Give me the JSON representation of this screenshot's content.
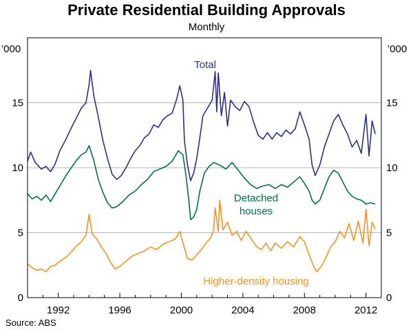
{
  "chart_data": {
    "type": "line",
    "title": "Private Residential Building Approvals",
    "subtitle": "Monthly",
    "source": "Source: ABS",
    "unit_left": "’000",
    "unit_right": "’000",
    "xlim": [
      1990.0,
      2013.0
    ],
    "ylim": [
      0,
      20
    ],
    "xticks": [
      1992,
      1996,
      2000,
      2004,
      2008,
      2012
    ],
    "yticks": [
      0,
      5,
      10,
      15
    ],
    "gridlines": "horizontal",
    "series": [
      {
        "name": "Total",
        "label": "Total",
        "color": "#2b2f8f",
        "points": [
          [
            1990.0,
            10.5
          ],
          [
            1990.2,
            11.2
          ],
          [
            1990.5,
            10.4
          ],
          [
            1990.9,
            9.9
          ],
          [
            1991.2,
            10.1
          ],
          [
            1991.5,
            9.7
          ],
          [
            1991.8,
            10.3
          ],
          [
            1992.1,
            11.3
          ],
          [
            1992.5,
            12.2
          ],
          [
            1992.9,
            13.2
          ],
          [
            1993.2,
            13.9
          ],
          [
            1993.5,
            14.6
          ],
          [
            1993.8,
            15.0
          ],
          [
            1994.0,
            16.4
          ],
          [
            1994.1,
            17.5
          ],
          [
            1994.3,
            15.6
          ],
          [
            1994.6,
            13.9
          ],
          [
            1994.9,
            12.1
          ],
          [
            1995.2,
            10.7
          ],
          [
            1995.5,
            9.5
          ],
          [
            1995.8,
            9.1
          ],
          [
            1996.1,
            9.4
          ],
          [
            1996.4,
            10.0
          ],
          [
            1996.7,
            10.7
          ],
          [
            1997.0,
            11.3
          ],
          [
            1997.3,
            11.7
          ],
          [
            1997.6,
            12.3
          ],
          [
            1997.9,
            12.6
          ],
          [
            1998.2,
            13.3
          ],
          [
            1998.5,
            13.1
          ],
          [
            1998.8,
            13.7
          ],
          [
            1999.1,
            14.0
          ],
          [
            1999.4,
            14.2
          ],
          [
            1999.7,
            15.3
          ],
          [
            1999.9,
            16.3
          ],
          [
            2000.1,
            15.2
          ],
          [
            2000.2,
            12.1
          ],
          [
            2000.4,
            10.2
          ],
          [
            2000.6,
            9.0
          ],
          [
            2000.8,
            9.6
          ],
          [
            2001.0,
            10.7
          ],
          [
            2001.2,
            12.3
          ],
          [
            2001.4,
            14.0
          ],
          [
            2001.7,
            14.6
          ],
          [
            2002.0,
            15.2
          ],
          [
            2002.2,
            17.4
          ],
          [
            2002.3,
            14.3
          ],
          [
            2002.4,
            17.3
          ],
          [
            2002.6,
            14.0
          ],
          [
            2002.8,
            15.8
          ],
          [
            2003.0,
            13.2
          ],
          [
            2003.2,
            15.2
          ],
          [
            2003.5,
            14.7
          ],
          [
            2003.8,
            14.4
          ],
          [
            2004.1,
            15.1
          ],
          [
            2004.4,
            14.7
          ],
          [
            2004.7,
            13.5
          ],
          [
            2005.0,
            12.5
          ],
          [
            2005.3,
            12.2
          ],
          [
            2005.6,
            12.7
          ],
          [
            2005.9,
            12.2
          ],
          [
            2006.2,
            12.7
          ],
          [
            2006.5,
            12.4
          ],
          [
            2006.8,
            12.9
          ],
          [
            2007.1,
            12.6
          ],
          [
            2007.4,
            13.0
          ],
          [
            2007.7,
            14.3
          ],
          [
            2008.0,
            13.3
          ],
          [
            2008.3,
            12.2
          ],
          [
            2008.5,
            10.2
          ],
          [
            2008.7,
            9.4
          ],
          [
            2009.0,
            10.2
          ],
          [
            2009.3,
            11.6
          ],
          [
            2009.6,
            12.6
          ],
          [
            2009.9,
            13.6
          ],
          [
            2010.2,
            14.1
          ],
          [
            2010.5,
            13.3
          ],
          [
            2010.8,
            12.6
          ],
          [
            2011.1,
            11.6
          ],
          [
            2011.4,
            12.1
          ],
          [
            2011.7,
            11.1
          ],
          [
            2012.0,
            14.1
          ],
          [
            2012.2,
            10.9
          ],
          [
            2012.4,
            13.6
          ],
          [
            2012.6,
            12.6
          ]
        ]
      },
      {
        "name": "Detached houses",
        "label": "Detached\nhouses",
        "color": "#00704a",
        "points": [
          [
            1990.0,
            8.0
          ],
          [
            1990.3,
            7.6
          ],
          [
            1990.6,
            7.8
          ],
          [
            1990.9,
            7.5
          ],
          [
            1991.2,
            7.9
          ],
          [
            1991.5,
            7.4
          ],
          [
            1991.8,
            8.0
          ],
          [
            1992.1,
            8.6
          ],
          [
            1992.5,
            9.4
          ],
          [
            1992.9,
            10.1
          ],
          [
            1993.2,
            10.6
          ],
          [
            1993.5,
            11.0
          ],
          [
            1993.8,
            11.2
          ],
          [
            1994.0,
            11.7
          ],
          [
            1994.3,
            10.6
          ],
          [
            1994.6,
            9.1
          ],
          [
            1994.9,
            8.1
          ],
          [
            1995.2,
            7.3
          ],
          [
            1995.5,
            6.9
          ],
          [
            1995.8,
            7.0
          ],
          [
            1996.2,
            7.4
          ],
          [
            1996.6,
            7.9
          ],
          [
            1997.0,
            8.2
          ],
          [
            1997.4,
            8.7
          ],
          [
            1997.8,
            9.1
          ],
          [
            1998.2,
            9.7
          ],
          [
            1998.6,
            9.9
          ],
          [
            1999.0,
            10.1
          ],
          [
            1999.4,
            10.5
          ],
          [
            1999.8,
            11.3
          ],
          [
            2000.1,
            11.0
          ],
          [
            2000.3,
            9.4
          ],
          [
            2000.5,
            7.3
          ],
          [
            2000.6,
            6.0
          ],
          [
            2000.8,
            6.2
          ],
          [
            2001.0,
            6.8
          ],
          [
            2001.2,
            8.2
          ],
          [
            2001.5,
            9.6
          ],
          [
            2001.8,
            10.1
          ],
          [
            2002.1,
            10.4
          ],
          [
            2002.5,
            10.2
          ],
          [
            2002.9,
            9.9
          ],
          [
            2003.3,
            10.4
          ],
          [
            2003.7,
            9.8
          ],
          [
            2004.1,
            9.2
          ],
          [
            2004.5,
            8.7
          ],
          [
            2004.9,
            8.4
          ],
          [
            2005.3,
            8.6
          ],
          [
            2005.7,
            8.7
          ],
          [
            2006.1,
            8.4
          ],
          [
            2006.5,
            8.7
          ],
          [
            2006.9,
            8.5
          ],
          [
            2007.3,
            8.9
          ],
          [
            2007.7,
            9.3
          ],
          [
            2008.0,
            8.8
          ],
          [
            2008.3,
            8.2
          ],
          [
            2008.5,
            7.5
          ],
          [
            2008.7,
            7.2
          ],
          [
            2009.0,
            7.5
          ],
          [
            2009.3,
            8.4
          ],
          [
            2009.6,
            9.3
          ],
          [
            2009.9,
            9.8
          ],
          [
            2010.2,
            9.6
          ],
          [
            2010.5,
            8.9
          ],
          [
            2010.8,
            8.2
          ],
          [
            2011.1,
            7.8
          ],
          [
            2011.4,
            7.6
          ],
          [
            2011.7,
            7.5
          ],
          [
            2012.0,
            7.2
          ],
          [
            2012.3,
            7.3
          ],
          [
            2012.6,
            7.2
          ]
        ]
      },
      {
        "name": "Higher-density housing",
        "label": "Higher-density housing",
        "color": "#f7941d",
        "points": [
          [
            1990.0,
            2.6
          ],
          [
            1990.3,
            2.3
          ],
          [
            1990.6,
            2.1
          ],
          [
            1990.9,
            2.2
          ],
          [
            1991.2,
            2.0
          ],
          [
            1991.5,
            2.4
          ],
          [
            1991.8,
            2.5
          ],
          [
            1992.1,
            2.8
          ],
          [
            1992.5,
            3.1
          ],
          [
            1992.9,
            3.6
          ],
          [
            1993.2,
            4.0
          ],
          [
            1993.5,
            4.3
          ],
          [
            1993.8,
            4.8
          ],
          [
            1994.0,
            6.4
          ],
          [
            1994.2,
            4.9
          ],
          [
            1994.5,
            4.5
          ],
          [
            1994.8,
            3.9
          ],
          [
            1995.1,
            3.4
          ],
          [
            1995.4,
            2.7
          ],
          [
            1995.7,
            2.2
          ],
          [
            1996.0,
            2.4
          ],
          [
            1996.4,
            2.8
          ],
          [
            1996.8,
            3.2
          ],
          [
            1997.2,
            3.4
          ],
          [
            1997.6,
            3.6
          ],
          [
            1998.0,
            3.9
          ],
          [
            1998.4,
            3.7
          ],
          [
            1998.8,
            4.1
          ],
          [
            1999.2,
            4.3
          ],
          [
            1999.6,
            4.5
          ],
          [
            1999.9,
            5.1
          ],
          [
            2000.1,
            4.2
          ],
          [
            2000.4,
            3.0
          ],
          [
            2000.7,
            2.9
          ],
          [
            2001.0,
            3.3
          ],
          [
            2001.3,
            3.7
          ],
          [
            2001.6,
            4.2
          ],
          [
            2001.9,
            4.6
          ],
          [
            2002.1,
            5.2
          ],
          [
            2002.2,
            6.9
          ],
          [
            2002.4,
            5.1
          ],
          [
            2002.5,
            7.5
          ],
          [
            2002.7,
            5.2
          ],
          [
            2003.0,
            5.8
          ],
          [
            2003.3,
            4.8
          ],
          [
            2003.6,
            5.1
          ],
          [
            2003.9,
            4.4
          ],
          [
            2004.2,
            5.1
          ],
          [
            2004.5,
            4.6
          ],
          [
            2004.9,
            3.9
          ],
          [
            2005.2,
            3.7
          ],
          [
            2005.5,
            4.2
          ],
          [
            2005.8,
            3.6
          ],
          [
            2006.1,
            4.2
          ],
          [
            2006.5,
            3.8
          ],
          [
            2006.9,
            4.3
          ],
          [
            2007.3,
            3.9
          ],
          [
            2007.7,
            4.7
          ],
          [
            2008.0,
            4.3
          ],
          [
            2008.3,
            3.3
          ],
          [
            2008.6,
            2.4
          ],
          [
            2008.8,
            2.0
          ],
          [
            2009.1,
            2.4
          ],
          [
            2009.4,
            3.1
          ],
          [
            2009.7,
            3.9
          ],
          [
            2010.0,
            4.3
          ],
          [
            2010.3,
            5.1
          ],
          [
            2010.6,
            4.6
          ],
          [
            2010.9,
            5.7
          ],
          [
            2011.2,
            4.4
          ],
          [
            2011.5,
            5.9
          ],
          [
            2011.8,
            4.2
          ],
          [
            2012.0,
            6.8
          ],
          [
            2012.2,
            4.0
          ],
          [
            2012.4,
            5.8
          ],
          [
            2012.6,
            5.3
          ]
        ]
      }
    ]
  }
}
